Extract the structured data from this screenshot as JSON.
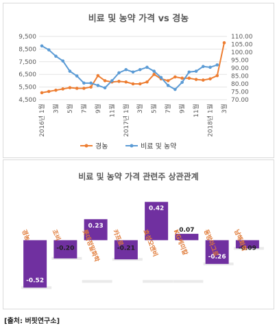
{
  "source_text": "[출처: 버핏연구소]",
  "chart_data": [
    {
      "type": "line",
      "title": "비료 및 농약 가격 vs 경농",
      "x": [
        "2016년 1월",
        "2월",
        "3월",
        "4월",
        "5월",
        "6월",
        "7월",
        "8월",
        "9월",
        "10월",
        "11월",
        "12월",
        "2017년 1월",
        "2월",
        "3월",
        "4월",
        "5월",
        "6월",
        "7월",
        "8월",
        "9월",
        "10월",
        "11월",
        "12월",
        "2018년 1월",
        "2월",
        "3월"
      ],
      "x_ticks": [
        {
          "i": 0,
          "label": "2016년 1월"
        },
        {
          "i": 2,
          "label": "3월"
        },
        {
          "i": 4,
          "label": "5월"
        },
        {
          "i": 6,
          "label": "7월"
        },
        {
          "i": 8,
          "label": "9월"
        },
        {
          "i": 10,
          "label": "11월"
        },
        {
          "i": 12,
          "label": "2017년 1월"
        },
        {
          "i": 14,
          "label": "3월"
        },
        {
          "i": 16,
          "label": "5월"
        },
        {
          "i": 18,
          "label": "7월"
        },
        {
          "i": 20,
          "label": "9월"
        },
        {
          "i": 22,
          "label": "11월"
        },
        {
          "i": 24,
          "label": "2018년 1월"
        },
        {
          "i": 26,
          "label": "3월"
        }
      ],
      "y_left": {
        "min": 4500,
        "max": 9500,
        "ticks": [
          "4,500",
          "5,500",
          "6,500",
          "7,500",
          "8,500",
          "9,500"
        ],
        "tick_values": [
          4500,
          5500,
          6500,
          7500,
          8500,
          9500
        ]
      },
      "y_right": {
        "min": 70,
        "max": 110,
        "ticks": [
          "70.00",
          "75.00",
          "80.00",
          "85.00",
          "90.00",
          "95.00",
          "100.00",
          "105.00",
          "110.00"
        ],
        "tick_values": [
          70,
          75,
          80,
          85,
          90,
          95,
          100,
          105,
          110
        ]
      },
      "series": [
        {
          "name": "경농",
          "axis": "left",
          "color": "#ed7d31",
          "values": [
            5050,
            5150,
            5250,
            5350,
            5450,
            5400,
            5400,
            5500,
            6400,
            6000,
            5900,
            5950,
            5900,
            5750,
            5750,
            5900,
            6500,
            6150,
            6000,
            6300,
            6200,
            6200,
            6100,
            6050,
            6150,
            6400,
            9000
          ]
        },
        {
          "name": "비료 및 농약",
          "axis": "right",
          "color": "#5b9bd5",
          "values": [
            104,
            101.5,
            97.5,
            94.5,
            88,
            85,
            80.5,
            80.5,
            79,
            77.5,
            82,
            87,
            89,
            87.5,
            89,
            90.5,
            88,
            84,
            79,
            76.5,
            81,
            87.5,
            88,
            91,
            90.5,
            92,
            null
          ]
        }
      ],
      "legend_position": "bottom"
    },
    {
      "type": "bar",
      "title": "비료 및 농약 가격 관련주 상관관계",
      "categories": [
        "경농",
        "조비",
        "롯데정밀화학",
        "카프로",
        "효성오앤비",
        "KG케미칼",
        "동방아그로",
        "남해화학"
      ],
      "values": [
        -0.52,
        -0.2,
        0.23,
        -0.21,
        0.42,
        0.07,
        -0.26,
        -0.09
      ],
      "value_labels": [
        "-0.52",
        "-0.20",
        "0.23",
        "-0.21",
        "0.42",
        "0.07",
        "-0.26",
        "-0.09"
      ],
      "color": "#7030a0",
      "ylim": [
        -0.6,
        0.5
      ]
    }
  ]
}
